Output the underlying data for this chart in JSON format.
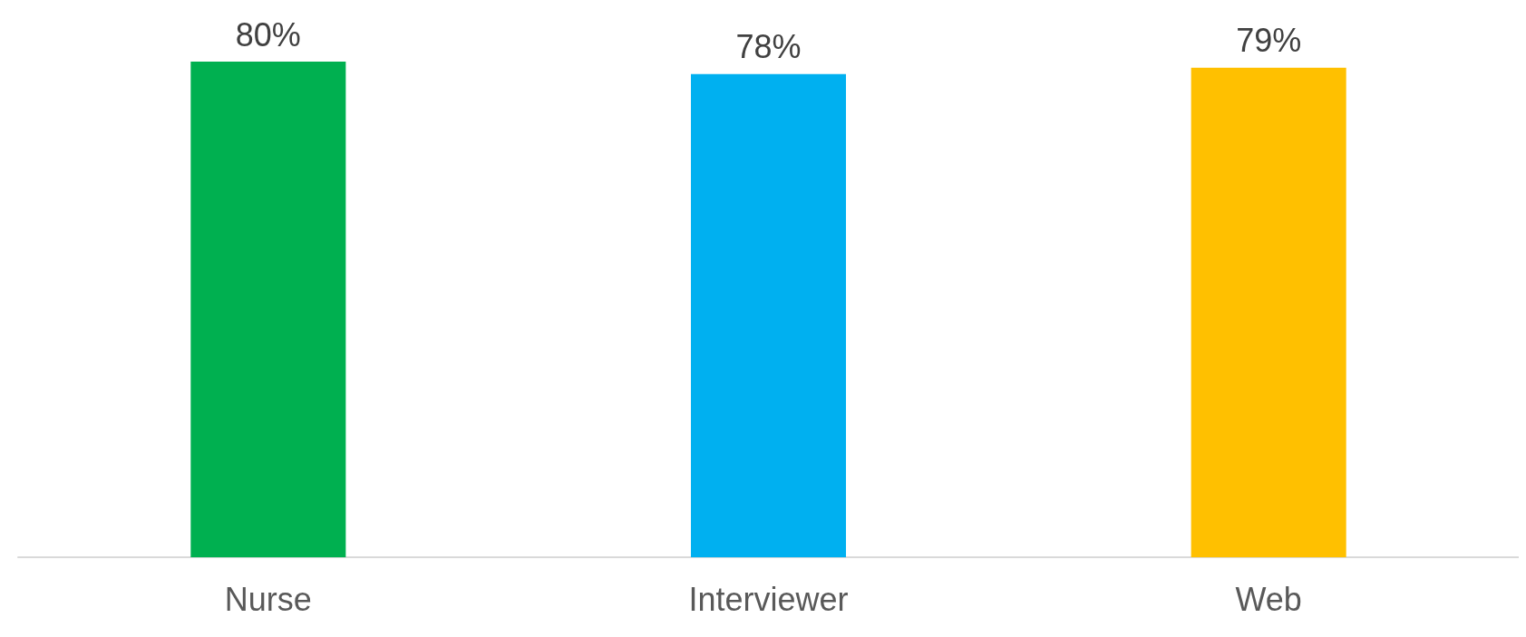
{
  "chart_data": {
    "type": "bar",
    "categories": [
      "Nurse",
      "Interviewer",
      "Web"
    ],
    "values": [
      80,
      78,
      79
    ],
    "colors": [
      "#00b050",
      "#00b0f0",
      "#ffc000"
    ],
    "value_labels": [
      "80%",
      "78%",
      "79%"
    ],
    "grid": false
  }
}
